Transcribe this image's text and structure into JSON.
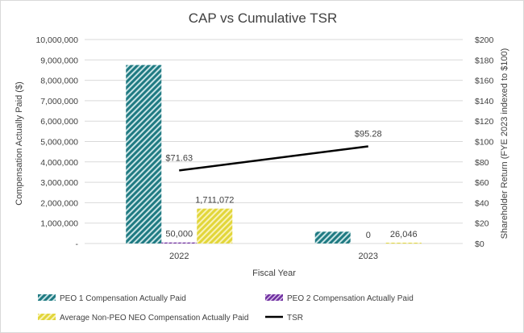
{
  "chart_data": {
    "type": "bar",
    "title": "CAP vs Cumulative TSR",
    "xlabel": "Fiscal Year",
    "ylabel": "Compensation Actually Paid ($)",
    "y2label": "Shareholder Return (FYE 2023 indexed to $100)",
    "categories": [
      "2022",
      "2023"
    ],
    "ylim": [
      0,
      10000000
    ],
    "y2lim": [
      0,
      200
    ],
    "y_ticks": [
      "-",
      "1,000,000",
      "2,000,000",
      "3,000,000",
      "4,000,000",
      "5,000,000",
      "6,000,000",
      "7,000,000",
      "8,000,000",
      "9,000,000",
      "10,000,000"
    ],
    "y2_ticks": [
      "$0",
      "$20",
      "$40",
      "$60",
      "$80",
      "$100",
      "$120",
      "$140",
      "$160",
      "$180",
      "$200"
    ],
    "grid": true,
    "legend_position": "bottom",
    "series": [
      {
        "name": "PEO 1 Compensation Actually Paid",
        "kind": "bar",
        "values": [
          8750000,
          580000
        ],
        "labels": [
          "",
          ""
        ],
        "color": "#1f7a82",
        "pattern": "hatch-dark"
      },
      {
        "name": "PEO 2 Compensation Actually Paid",
        "kind": "bar",
        "values": [
          50000,
          0
        ],
        "labels": [
          "50,000",
          "0"
        ],
        "color": "#7030a0",
        "pattern": "hatch-purple"
      },
      {
        "name": "Average Non-PEO NEO Compensation Actually Paid",
        "kind": "bar",
        "values": [
          1711072,
          26046
        ],
        "labels": [
          "1,711,072",
          "26,046"
        ],
        "color": "#e2d63a",
        "pattern": "hatch-yellow"
      },
      {
        "name": "TSR",
        "kind": "line",
        "axis": "secondary",
        "values": [
          71.63,
          95.28
        ],
        "labels": [
          "$71.63",
          "$95.28"
        ],
        "color": "#000000"
      }
    ]
  }
}
